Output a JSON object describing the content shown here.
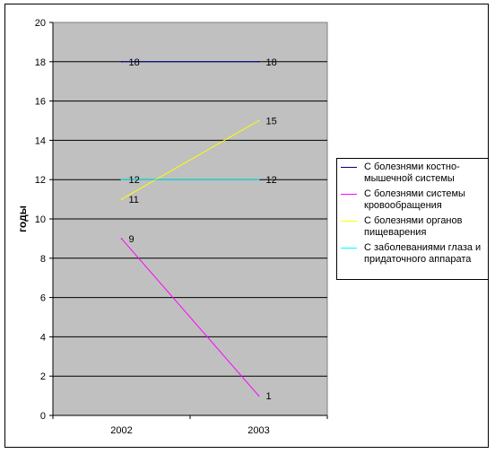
{
  "chart_data": {
    "type": "line",
    "categories": [
      "2002",
      "2003"
    ],
    "ylabel": "годы",
    "xlabel": "",
    "ylim": [
      0,
      20
    ],
    "yticks": [
      "0",
      "2",
      "4",
      "6",
      "8",
      "10",
      "12",
      "14",
      "16",
      "18",
      "20"
    ],
    "plot_background": "#c0c0c0",
    "grid": true,
    "legend_position": "right",
    "series": [
      {
        "name": "С болезнями костно-мышечной системы",
        "values": [
          18,
          18
        ],
        "color": "#000080"
      },
      {
        "name": "С болезнями системы кровообращения",
        "values": [
          9,
          1
        ],
        "color": "#ff00ff"
      },
      {
        "name": "С болезнями органов пищеварения",
        "values": [
          11,
          15
        ],
        "color": "#ffff00"
      },
      {
        "name": "С заболеваниями глаза и придаточного аппарата",
        "values": [
          12,
          12
        ],
        "color": "#00ffff"
      }
    ]
  }
}
